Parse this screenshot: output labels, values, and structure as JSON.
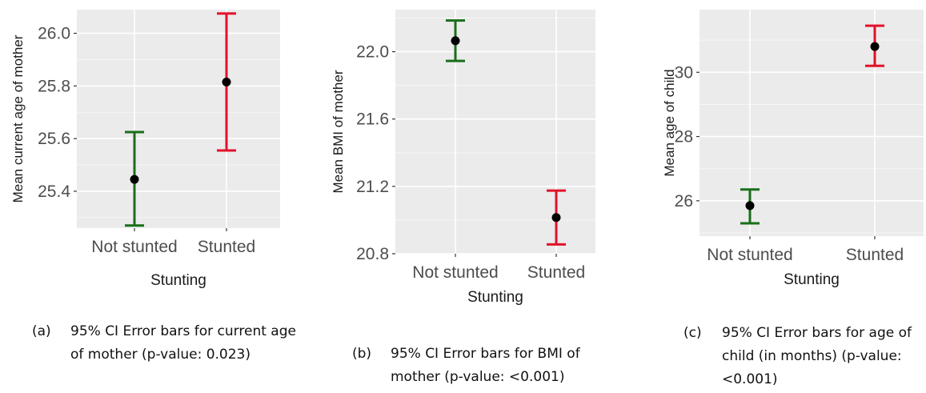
{
  "colors": {
    "panel_background": "#ebebeb",
    "grid_major": "#ffffff",
    "not_stunted": "#1a6e1a",
    "stunted": "#e3102a",
    "point": "#000000",
    "axis_text": "#4d4d4d",
    "axis_title": "#1a1a1a"
  },
  "chart_data": [
    {
      "type": "errorbar",
      "xlabel": "Stunting",
      "ylabel": "Mean current age of mother",
      "categories": [
        "Not stunted",
        "Stunted"
      ],
      "mean": [
        25.445,
        25.815
      ],
      "ci_lower": [
        25.27,
        25.555
      ],
      "ci_upper": [
        25.625,
        26.075
      ],
      "ylim": [
        25.26,
        26.09
      ],
      "yticks": [
        25.4,
        25.6,
        25.8,
        26.0
      ],
      "ytick_labels": [
        "25.4",
        "25.6",
        "25.8",
        "26.0"
      ],
      "grid": true,
      "legend": "none"
    },
    {
      "type": "errorbar",
      "xlabel": "Stunting",
      "ylabel": "Mean BMI of mother",
      "categories": [
        "Not stunted",
        "Stunted"
      ],
      "mean": [
        22.065,
        21.015
      ],
      "ci_lower": [
        21.945,
        20.855
      ],
      "ci_upper": [
        22.185,
        21.175
      ],
      "ylim": [
        20.8,
        22.25
      ],
      "yticks": [
        20.8,
        21.2,
        21.6,
        22.0
      ],
      "ytick_labels": [
        "20.8",
        "21.2",
        "21.6",
        "22.0"
      ],
      "grid": true,
      "legend": "none"
    },
    {
      "type": "errorbar",
      "xlabel": "Stunting",
      "ylabel": "Mean age of child",
      "categories": [
        "Not stunted",
        "Stunted"
      ],
      "mean": [
        25.85,
        30.8
      ],
      "ci_lower": [
        25.3,
        30.2
      ],
      "ci_upper": [
        26.35,
        31.45
      ],
      "ylim": [
        24.9,
        31.95
      ],
      "yticks": [
        26,
        28,
        30
      ],
      "ytick_labels": [
        "26",
        "28",
        "30"
      ],
      "grid": true,
      "legend": "none"
    }
  ],
  "captions": [
    {
      "letter": "(a)",
      "text": "95% CI Error bars for current age of mother (p-value: 0.023)"
    },
    {
      "letter": "(b)",
      "text": "95% CI Error bars for BMI of mother (p-value: <0.001)"
    },
    {
      "letter": "(c)",
      "text": "95% CI Error bars for age of child (in months) (p-value: <0.001)"
    }
  ]
}
